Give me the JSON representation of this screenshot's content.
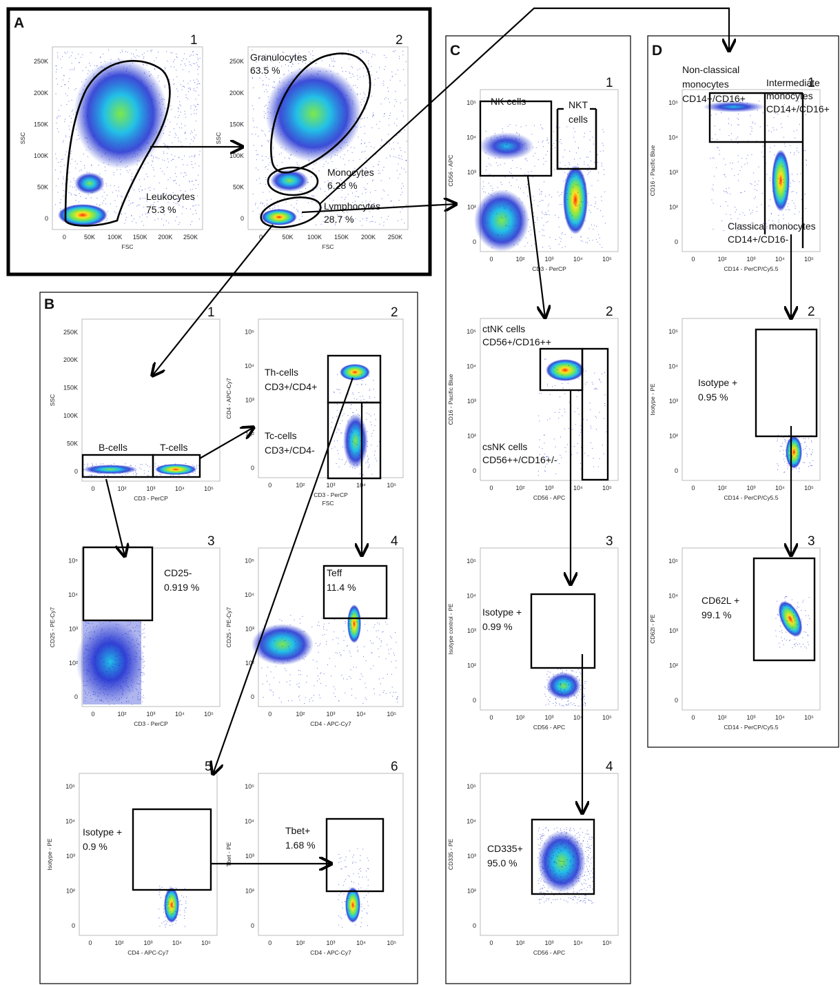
{
  "panels": {
    "A": {
      "letter": "A",
      "plots": [
        {
          "num": "1",
          "xlabel": "FSC",
          "ylabel": "SSC",
          "xticks": [
            "0",
            "50K",
            "100K",
            "150K",
            "200K",
            "250K"
          ],
          "yticks": [
            "0",
            "50K",
            "100K",
            "150K",
            "200K",
            "250K"
          ],
          "gates": [
            {
              "text": "Leukocytes\n75.3 %"
            }
          ]
        },
        {
          "num": "2",
          "xlabel": "FSC",
          "ylabel": "SSC",
          "xticks": [
            "0",
            "50K",
            "100K",
            "150K",
            "200K",
            "250K"
          ],
          "yticks": [
            "0",
            "50K",
            "100K",
            "150K",
            "200K",
            "250K"
          ],
          "gates": [
            {
              "text": "Granulocytes\n63.5 %"
            },
            {
              "text": "Monocytes\n6.28 %"
            },
            {
              "text": "Lymphocytes\n28.7 %"
            }
          ]
        }
      ]
    },
    "B": {
      "letter": "B",
      "plots": [
        {
          "num": "1",
          "xlabel": "CD3 - PerCP",
          "ylabel": "SSC",
          "xticks": [
            "0",
            "10²",
            "10³",
            "10⁴",
            "10⁵"
          ],
          "yticks": [
            "0",
            "50K",
            "100K",
            "150K",
            "200K",
            "250K"
          ],
          "gates": [
            {
              "text": "B-cells"
            },
            {
              "text": "T-cells"
            }
          ]
        },
        {
          "num": "2",
          "xlabel": "CD3 - PerCP",
          "ylabel": "CD4 - APC-Cy7",
          "extra": "FSC",
          "xticks": [
            "0",
            "10²",
            "10³",
            "10⁴",
            "10⁵"
          ],
          "yticks": [
            "0",
            "10²",
            "10³",
            "10⁴",
            "10⁵"
          ],
          "gates": [
            {
              "text": "Th-cells\nCD3+/CD4+"
            },
            {
              "text": "Tc-cells\nCD3+/CD4-"
            }
          ]
        },
        {
          "num": "3",
          "xlabel": "CD3 - PerCP",
          "ylabel": "CD25 - PE-Cy7",
          "xticks": [
            "0",
            "10²",
            "10³",
            "10⁴",
            "10⁵"
          ],
          "yticks": [
            "0",
            "10²",
            "10³",
            "10⁴",
            "10⁵"
          ],
          "gates": [
            {
              "text": "CD25-\n0.919 %"
            }
          ]
        },
        {
          "num": "4",
          "xlabel": "CD4 - APC-Cy7",
          "ylabel": "CD25 - PE-Cy7",
          "xticks": [
            "0",
            "10²",
            "10³",
            "10⁴",
            "10⁵"
          ],
          "yticks": [
            "0",
            "10²",
            "10³",
            "10⁴",
            "10⁵"
          ],
          "gates": [
            {
              "text": "Teff\n11.4 %"
            }
          ]
        },
        {
          "num": "5",
          "xlabel": "CD4 - APC-Cy7",
          "ylabel": "Isotype - PE",
          "xticks": [
            "0",
            "10²",
            "10³",
            "10⁴",
            "10⁵"
          ],
          "yticks": [
            "0",
            "10²",
            "10³",
            "10⁴",
            "10⁵"
          ],
          "gates": [
            {
              "text": "Isotype +\n0.9 %"
            }
          ]
        },
        {
          "num": "6",
          "xlabel": "CD4 - APC-Cy7",
          "ylabel": "Tbet - PE",
          "xticks": [
            "0",
            "10²",
            "10³",
            "10⁴",
            "10⁵"
          ],
          "yticks": [
            "0",
            "10²",
            "10³",
            "10⁴",
            "10⁵"
          ],
          "gates": [
            {
              "text": "Tbet+\n1.68 %"
            }
          ]
        }
      ]
    },
    "C": {
      "letter": "C",
      "plots": [
        {
          "num": "1",
          "xlabel": "CD3 - PerCP",
          "ylabel": "CD56 - APC",
          "xticks": [
            "0",
            "10²",
            "10³",
            "10⁴",
            "10⁵"
          ],
          "yticks": [
            "0",
            "10²",
            "10³",
            "10⁴",
            "10⁵"
          ],
          "gates": [
            {
              "text": "NK cells"
            },
            {
              "text": "NKT\ncells"
            }
          ]
        },
        {
          "num": "2",
          "xlabel": "CD56 - APC",
          "ylabel": "CD16 - Pacific Blue",
          "xticks": [
            "0",
            "10²",
            "10³",
            "10⁴",
            "10⁵"
          ],
          "yticks": [
            "0",
            "10²",
            "10³",
            "10⁴",
            "10⁵"
          ],
          "gates": [
            {
              "text": "ctNK cells\nCD56+/CD16++"
            },
            {
              "text": "csNK cells\nCD56++/CD16+/-"
            }
          ]
        },
        {
          "num": "3",
          "xlabel": "CD56 - APC",
          "ylabel": "Isotype control - PE",
          "xticks": [
            "0",
            "10²",
            "10³",
            "10⁴",
            "10⁵"
          ],
          "yticks": [
            "0",
            "10²",
            "10³",
            "10⁴",
            "10⁵"
          ],
          "gates": [
            {
              "text": "Isotype +\n0.99 %"
            }
          ]
        },
        {
          "num": "4",
          "xlabel": "CD56 - APC",
          "ylabel": "CD335 - PE",
          "xticks": [
            "0",
            "10²",
            "10³",
            "10⁴",
            "10⁵"
          ],
          "yticks": [
            "0",
            "10²",
            "10³",
            "10⁴",
            "10⁵"
          ],
          "gates": [
            {
              "text": "CD335+\n95.0 %"
            }
          ]
        }
      ]
    },
    "D": {
      "letter": "D",
      "plots": [
        {
          "num": "1",
          "xlabel": "CD14 - PerCP/Cy5.5",
          "ylabel": "CD16 - Pacific Blue",
          "xticks": [
            "0",
            "10²",
            "10³",
            "10⁴",
            "10⁵"
          ],
          "yticks": [
            "0",
            "10²",
            "10³",
            "10⁴",
            "10⁵"
          ],
          "gates": [
            {
              "text": "Non-classical\nmonocytes\nCD14+/CD16+"
            },
            {
              "text": "Intermediate\nmonocytes\nCD14+/CD16+"
            },
            {
              "text": "Classical monocytes\nCD14+/CD16-"
            }
          ]
        },
        {
          "num": "2",
          "xlabel": "CD14 - PerCP/Cy5.5",
          "ylabel": "Isotype - PE",
          "xticks": [
            "0",
            "10²",
            "10³",
            "10⁴",
            "10⁵"
          ],
          "yticks": [
            "0",
            "10²",
            "10³",
            "10⁴",
            "10⁵"
          ],
          "gates": [
            {
              "text": "Isotype +\n0.95 %"
            }
          ]
        },
        {
          "num": "3",
          "xlabel": "CD14 - PerCP/Cy5.5",
          "ylabel": "CD62l - PE",
          "xticks": [
            "0",
            "10²",
            "10³",
            "10⁴",
            "10⁵"
          ],
          "yticks": [
            "0",
            "10²",
            "10³",
            "10⁴",
            "10⁵"
          ],
          "gates": [
            {
              "text": "CD62L +\n99.1 %"
            }
          ]
        }
      ]
    }
  },
  "colors": {
    "low": "#1a2ccf",
    "mid": "#22c0e8",
    "midhigh": "#7ee84a",
    "high": "#ffe020",
    "peak": "#ff2a10"
  }
}
